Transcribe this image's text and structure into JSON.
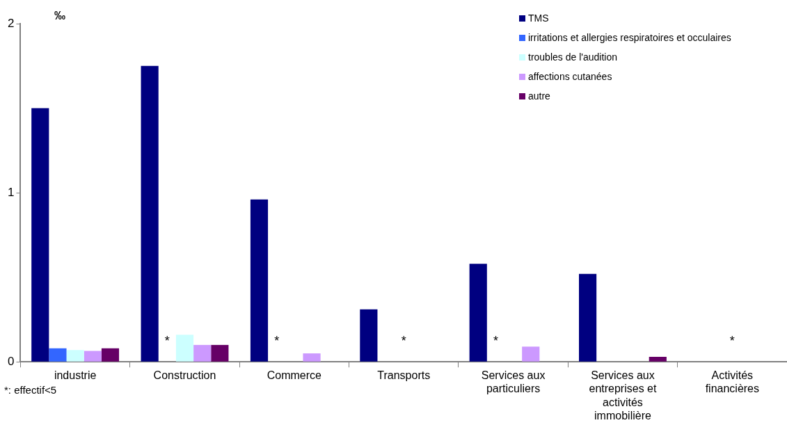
{
  "chart_data": {
    "type": "bar",
    "ylabel": "‰",
    "categories": [
      "industrie",
      "Construction",
      "Commerce",
      "Transports",
      "Services aux particuliers",
      "Services aux entreprises et activités immobilière",
      "Activités financières"
    ],
    "series": [
      {
        "name": "TMS",
        "color": "#000080",
        "values": [
          1.5,
          1.75,
          0.96,
          0.31,
          0.58,
          0.52,
          null
        ]
      },
      {
        "name": "irritations et allergies respiratoires et occulaires",
        "color": "#3366ff",
        "values": [
          0.08,
          null,
          null,
          null,
          null,
          null,
          null
        ],
        "value_labels": [
          null,
          "*",
          "*",
          null,
          "*",
          null,
          null
        ]
      },
      {
        "name": "troubles de l'audition",
        "color": "#ccffff",
        "values": [
          0.07,
          0.16,
          null,
          null,
          null,
          null,
          null
        ],
        "value_labels": [
          null,
          null,
          null,
          "*",
          null,
          null,
          "*"
        ]
      },
      {
        "name": "affections cutanées",
        "color": "#cc99ff",
        "values": [
          0.065,
          0.1,
          0.05,
          null,
          0.09,
          null,
          null
        ]
      },
      {
        "name": "autre",
        "color": "#660066",
        "values": [
          0.08,
          0.1,
          null,
          null,
          null,
          0.03,
          null
        ]
      }
    ],
    "ylim": [
      0,
      2
    ],
    "yticks": [
      0,
      1,
      2
    ],
    "grid": false,
    "legend": "top right",
    "annotations": [
      "*: effectif<5"
    ]
  }
}
